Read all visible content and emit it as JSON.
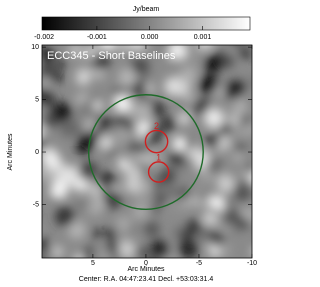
{
  "chart_data": {
    "type": "image",
    "title": "ECC345 - Short Baselines",
    "colorbar": {
      "label": "Jy/beam",
      "lim": [
        -0.00204,
        0.0019
      ],
      "ticks": [
        -0.002,
        -0.001,
        {
          "value": 0,
          "label": "0.000"
        },
        0.001
      ]
    },
    "xlabel": "Arc Minutes",
    "ylabel": "Arc Minutes",
    "footer": "Center: R.A. 04:47:23.41 Decl. +53:03:31.4",
    "xlim": [
      9.8,
      -10
    ],
    "ylim": [
      -10.1,
      10.2
    ],
    "xticks": [
      5,
      0,
      -5,
      -10
    ],
    "yticks": [
      10,
      5,
      0,
      -5
    ],
    "circles": [
      {
        "x": 0,
        "y": 0,
        "r": 5.4,
        "color": "#1f6b2a"
      },
      {
        "x": -1.0,
        "y": 1.0,
        "r": 1.05,
        "color": "#d02020",
        "label": "2"
      },
      {
        "x": -1.2,
        "y": -1.9,
        "r": 0.95,
        "color": "#d02020",
        "label": "1"
      }
    ]
  }
}
